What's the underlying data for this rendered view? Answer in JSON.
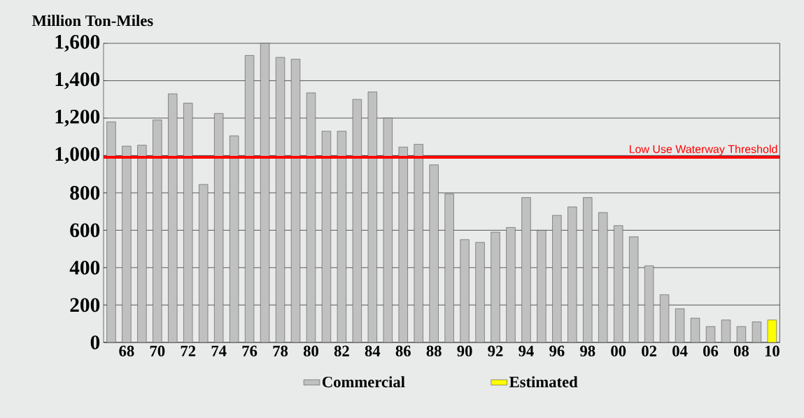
{
  "chart_data": {
    "type": "bar",
    "ylabel": "Million Ton-Miles",
    "categories": [
      null,
      "68",
      null,
      "70",
      null,
      "72",
      null,
      "74",
      null,
      "76",
      null,
      "78",
      null,
      "80",
      null,
      "82",
      null,
      "84",
      null,
      "86",
      null,
      "88",
      null,
      "90",
      null,
      "92",
      null,
      "94",
      null,
      "96",
      null,
      "98",
      null,
      "00",
      null,
      "02",
      null,
      "04",
      null,
      "06",
      null,
      "08",
      null,
      "10"
    ],
    "series": [
      {
        "name": "Commercial",
        "color": "#c0c0c0",
        "values": [
          1180,
          1050,
          1055,
          1190,
          1330,
          1280,
          845,
          1225,
          1105,
          1535,
          1600,
          1525,
          1515,
          1335,
          1130,
          1130,
          1300,
          1340,
          1200,
          1045,
          1060,
          950,
          795,
          550,
          535,
          590,
          615,
          775,
          600,
          680,
          725,
          775,
          695,
          625,
          565,
          410,
          255,
          180,
          130,
          85,
          120,
          85,
          110,
          null
        ]
      },
      {
        "name": "Estimated",
        "color": "#ffff00",
        "values": [
          null,
          null,
          null,
          null,
          null,
          null,
          null,
          null,
          null,
          null,
          null,
          null,
          null,
          null,
          null,
          null,
          null,
          null,
          null,
          null,
          null,
          null,
          null,
          null,
          null,
          null,
          null,
          null,
          null,
          null,
          null,
          null,
          null,
          null,
          null,
          null,
          null,
          null,
          null,
          null,
          null,
          null,
          null,
          120
        ]
      }
    ],
    "ylim": [
      0,
      1600
    ],
    "yticks": [
      0,
      200,
      400,
      600,
      800,
      {
        "value": 1000,
        "label": "1,000"
      },
      {
        "value": 1200,
        "label": "1,200"
      },
      {
        "value": 1400,
        "label": "1,400"
      },
      {
        "value": 1600,
        "label": "1,600"
      }
    ],
    "ref_lines": [
      {
        "axis": "y",
        "value": 990,
        "label": "Low Use Waterway Threshold",
        "color": "#ff0000"
      }
    ],
    "grid": "y",
    "legend": "bottom"
  }
}
